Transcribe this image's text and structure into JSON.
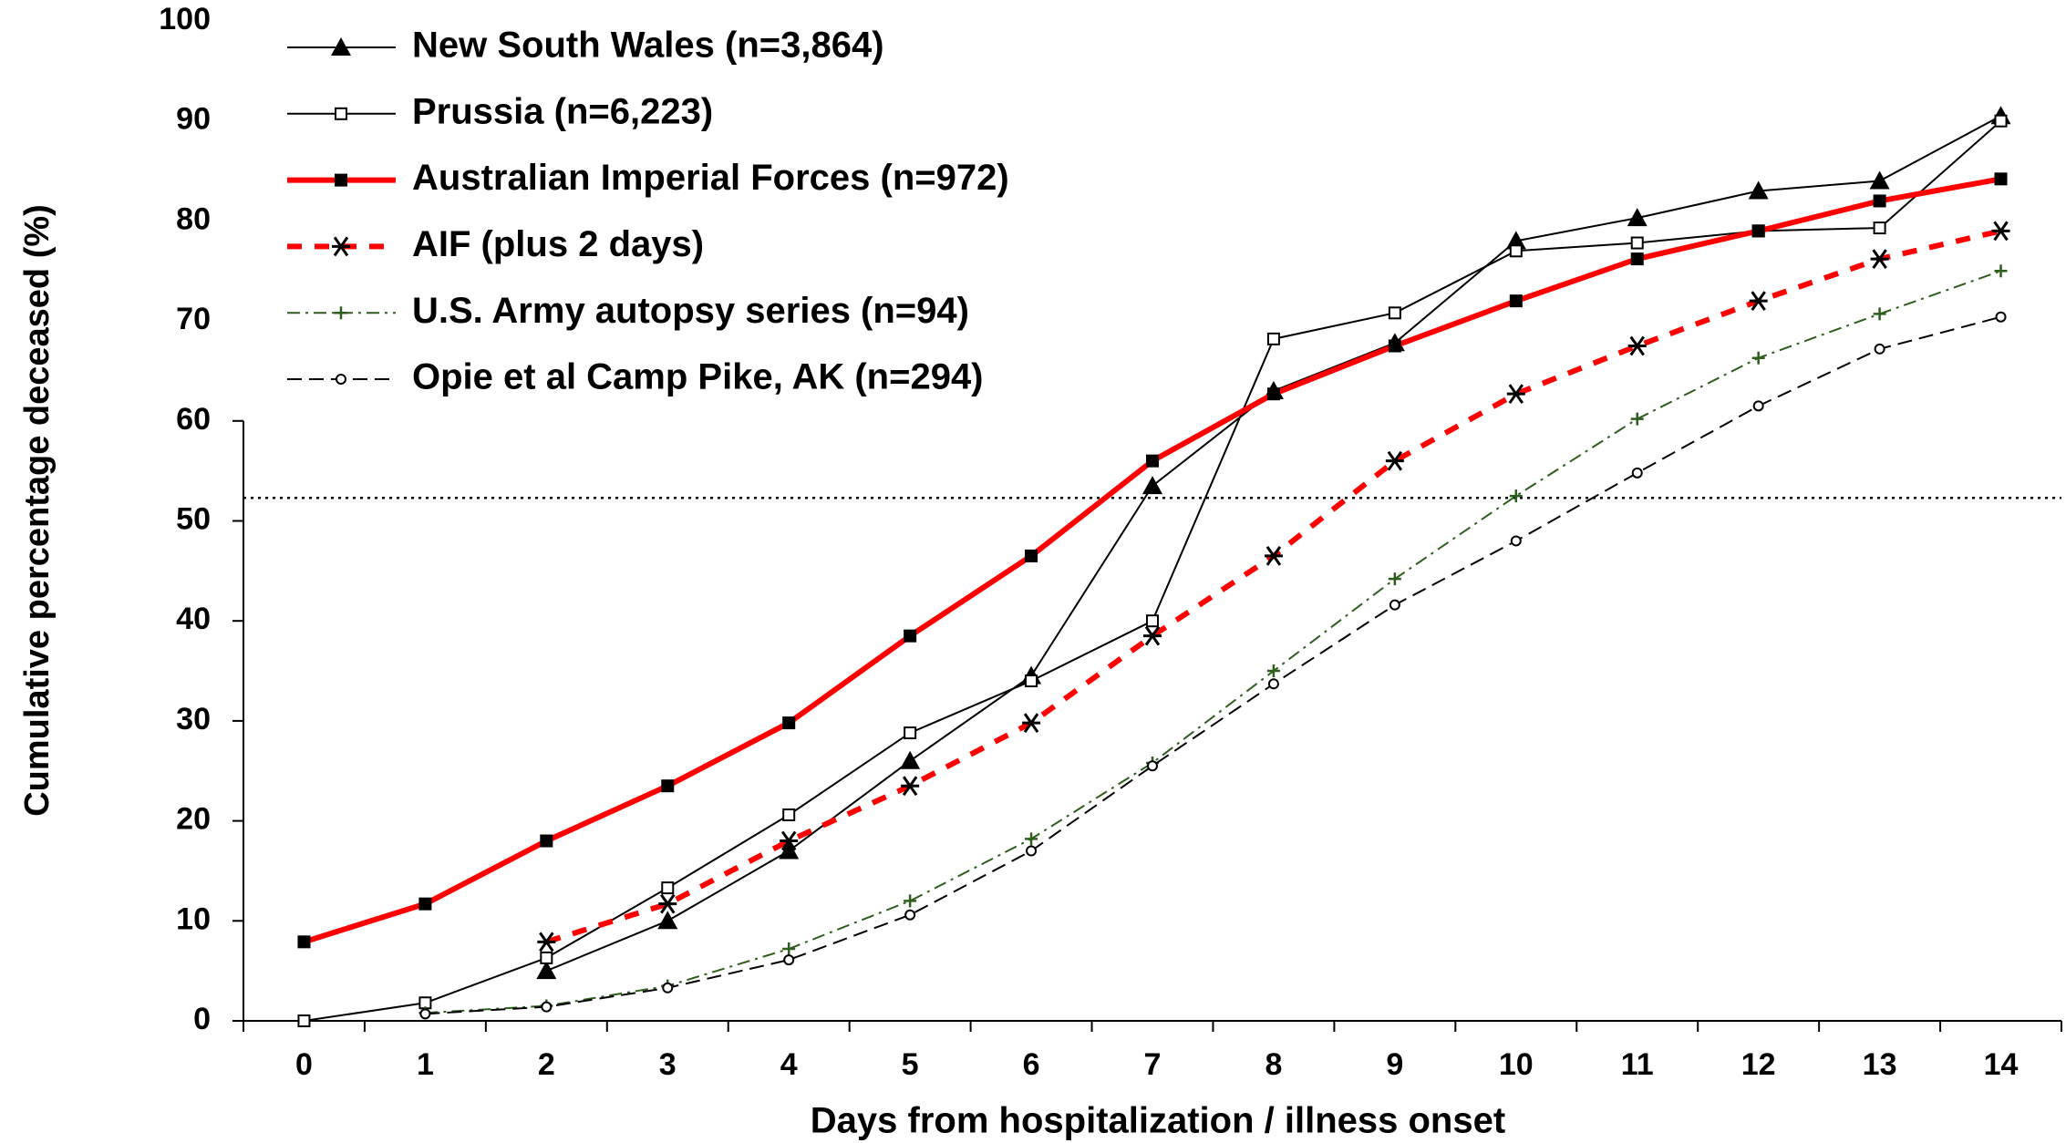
{
  "chart_data": {
    "type": "line",
    "x_label": "Days from hospitalization / illness onset",
    "y_label": "Cumulative percentage deceased (%)",
    "categories": [
      "0",
      "1",
      "2",
      "3",
      "4",
      "5",
      "6",
      "7",
      "8",
      "9",
      "10",
      "11",
      "12",
      "13",
      "14"
    ],
    "ylim": [
      0,
      100
    ],
    "yticks": [
      0,
      10,
      20,
      30,
      40,
      50,
      60,
      70,
      80,
      90,
      100
    ],
    "reference_line": 52.3,
    "legend": "upper left",
    "series": [
      {
        "name": "New South Wales (n=3,864)",
        "color": "#000000",
        "marker": "triangle",
        "dash": "solid",
        "width": 2,
        "values": [
          null,
          null,
          5,
          10,
          17,
          26,
          34.5,
          53.5,
          63,
          67.8,
          78,
          80.3,
          83,
          84,
          90.5
        ]
      },
      {
        "name": "Prussia (n=6,223)",
        "color": "#000000",
        "marker": "open-square",
        "dash": "solid",
        "width": 2,
        "values": [
          0,
          1.8,
          6.3,
          13.3,
          20.6,
          28.8,
          34,
          40,
          68.2,
          70.8,
          77,
          77.8,
          79,
          79.3,
          90
        ]
      },
      {
        "name": "Australian Imperial Forces (n=972)",
        "color": "#ff0000",
        "marker": "square",
        "dash": "solid",
        "width": 6,
        "values": [
          7.9,
          11.7,
          18,
          23.5,
          29.8,
          38.5,
          46.5,
          56,
          62.7,
          67.5,
          72,
          76.2,
          79,
          82,
          84.2
        ]
      },
      {
        "name": "AIF (plus 2 days)",
        "color": "#ff0000",
        "marker": "asterisk",
        "dash": "dashed",
        "width": 6,
        "values": [
          null,
          null,
          7.9,
          11.7,
          18,
          23.5,
          29.8,
          38.5,
          46.5,
          56,
          62.7,
          67.5,
          72,
          76.2,
          79
        ]
      },
      {
        "name": "U.S. Army autopsy series (n=94)",
        "color": "#2e5e1e",
        "marker": "plus",
        "dash": "dashdot",
        "width": 2,
        "values": [
          null,
          0.8,
          1.5,
          3.5,
          7.2,
          12,
          18.2,
          25.8,
          35,
          44.2,
          52.5,
          60.2,
          66.3,
          70.7,
          75
        ]
      },
      {
        "name": "Opie et al Camp Pike, AK (n=294)",
        "color": "#000000",
        "marker": "circle",
        "dash": "dashed-thin",
        "width": 2,
        "values": [
          null,
          0.7,
          1.4,
          3.3,
          6.1,
          10.6,
          17,
          25.5,
          33.7,
          41.6,
          48,
          54.8,
          61.5,
          67.2,
          70.4
        ]
      }
    ]
  }
}
